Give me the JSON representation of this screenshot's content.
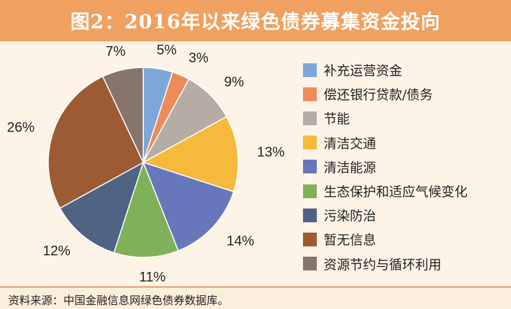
{
  "title": "图2：2016年以来绿色债券募集资金投向",
  "source": "资料来源：中国金融信息网绿色债券数据库。",
  "chart_data": {
    "type": "pie",
    "title": "图2：2016年以来绿色债券募集资金投向",
    "legend_position": "right",
    "slices": [
      {
        "label": "补充运营资金",
        "value": 5,
        "display": "5%",
        "color": "#7da7d9"
      },
      {
        "label": "偿还银行贷款/债务",
        "value": 3,
        "display": "3%",
        "color": "#ef8a5a"
      },
      {
        "label": "节能",
        "value": 9,
        "display": "9%",
        "color": "#b4aca5"
      },
      {
        "label": "清洁交通",
        "value": 13,
        "display": "13%",
        "color": "#f5b93c"
      },
      {
        "label": "清洁能源",
        "value": 14,
        "display": "14%",
        "color": "#6877bb"
      },
      {
        "label": "生态保护和适应气候变化",
        "value": 11,
        "display": "11%",
        "color": "#7fb15a"
      },
      {
        "label": "污染防治",
        "value": 12,
        "display": "12%",
        "color": "#4f6383"
      },
      {
        "label": "暂无信息",
        "value": 26,
        "display": "26%",
        "color": "#9c5b32"
      },
      {
        "label": "资源节约与循环利用",
        "value": 7,
        "display": "7%",
        "color": "#85756c"
      }
    ]
  }
}
